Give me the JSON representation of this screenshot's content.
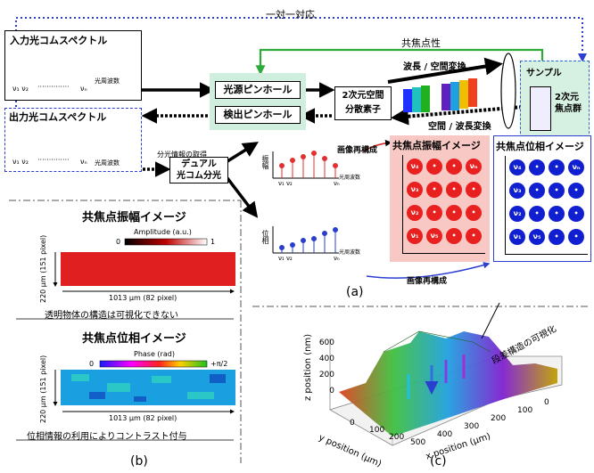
{
  "top": {
    "one_to_one": "一対一対応",
    "confocal": "共焦点性",
    "input_comb": "入力光コムスペクトル",
    "output_comb": "出力光コムスペクトル",
    "freq_label": "光周波数",
    "nu1": "ν₁ ν₂",
    "dots": "··············",
    "nun": "νₙ",
    "source_pinhole": "光源ピンホール",
    "detect_pinhole": "検出ピンホール",
    "disperser": [
      "2次元空間",
      "分散素子"
    ],
    "wave_space": "波長 / 空間変換",
    "space_wave": "空間 / 波長変換",
    "sample": "サンプル",
    "focal_group": [
      "2次元",
      "焦点群"
    ],
    "spectral_info": "分光情報の取得",
    "dual_comb": [
      "デュアル",
      "光コム分光"
    ],
    "image_recon": "画像再構成",
    "amp_axis": "振幅",
    "phase_axis": "位相",
    "amp_image_title": "共焦点振幅イメージ",
    "phase_image_title": "共焦点位相イメージ",
    "grid_labels": [
      [
        "ν₄",
        "",
        "",
        " νₙ"
      ],
      [
        "ν₃",
        "",
        "",
        ""
      ],
      [
        "ν₂",
        "",
        "",
        ""
      ],
      [
        "ν₁",
        "ν₅",
        "",
        ""
      ]
    ],
    "label_a": "(a)"
  },
  "panel_b": {
    "amp_title": "共焦点振幅イメージ",
    "amp_unit": "Amplitude (a.u.)",
    "amp_min": "0",
    "amp_max": "1",
    "ylabel": "220 μm (151 pixel)",
    "xlabel": "1013 μm (82 pixel)",
    "amp_caption": "透明物体の構造は可視化できない",
    "phase_title": "共焦点位相イメージ",
    "phase_unit": "Phase (rad)",
    "phase_min": "0",
    "phase_max": "+π/2",
    "phase_caption": "位相情報の利用によりコントラスト付与",
    "label_b": "(b)"
  },
  "panel_c": {
    "zlabel": "z position (nm)",
    "ylabel": "y position (μm)",
    "xlabel": "x position (μm)",
    "z_ticks": [
      "0",
      "200",
      "400",
      "600"
    ],
    "y_ticks": [
      "0",
      "100",
      "200"
    ],
    "x_ticks": [
      "500",
      "400",
      "300",
      "200",
      "100",
      "0"
    ],
    "annotation": "段差構造の可視化",
    "label_c": "(c)"
  }
}
